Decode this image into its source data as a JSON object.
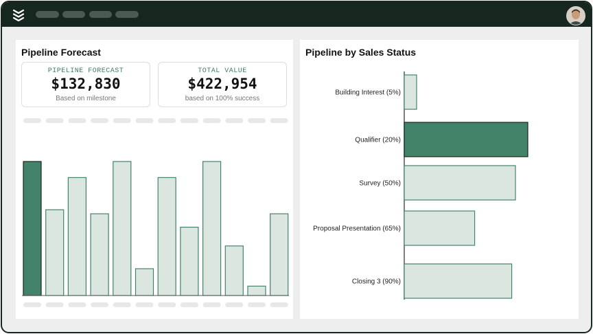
{
  "app": {
    "logo_icon": "stacked-chevrons-icon",
    "avatar_icon": "user-avatar",
    "nav_tabs": [
      "",
      "",
      "",
      ""
    ]
  },
  "left_panel": {
    "title": "Pipeline Forecast",
    "cards": [
      {
        "label": "PIPELINE FORECAST",
        "value": "$132,830",
        "sub": "Based on milestone"
      },
      {
        "label": "TOTAL VALUE",
        "value": "$422,954",
        "sub": "based on 100% success"
      }
    ]
  },
  "right_panel": {
    "title": "Pipeline by Sales Status"
  },
  "colors": {
    "dark_bar": "#43836a",
    "light_bar": "#dbe6e0",
    "bar_stroke": "#43836a",
    "frame": "#16271f"
  },
  "chart_data": [
    {
      "type": "bar",
      "title": "",
      "categories": [
        "",
        "",
        "",
        "",
        "",
        "",
        "",
        "",
        "",
        "",
        "",
        ""
      ],
      "values": [
        100,
        64,
        88,
        61,
        100,
        20,
        88,
        51,
        100,
        37,
        7,
        61
      ],
      "highlight_index": 0,
      "ylim": [
        0,
        100
      ],
      "grid": false
    },
    {
      "type": "bar",
      "orientation": "horizontal",
      "categories": [
        "Building Interest (5%)",
        "Qualifier (20%)",
        "Survey (50%)",
        "Proposal Presentation (65%)",
        "Closing 3 (90%)"
      ],
      "values": [
        10,
        100,
        90,
        57,
        87
      ],
      "highlight_index": 1,
      "xlim": [
        0,
        100
      ],
      "grid": false
    }
  ]
}
